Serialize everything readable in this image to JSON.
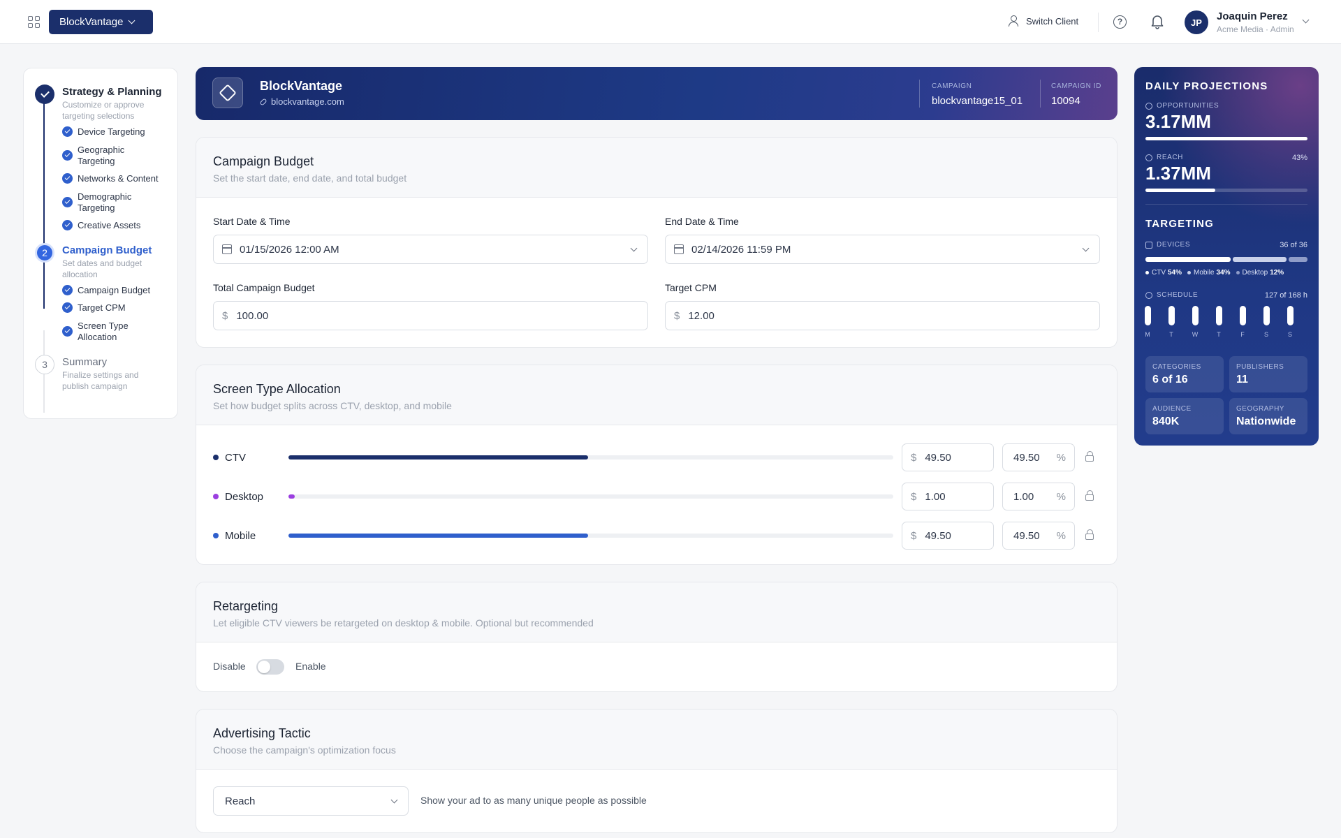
{
  "topbar": {
    "client": "BlockVantage",
    "switch_client": "Switch Client",
    "user_initials": "JP",
    "user_name": "Joaquin Perez",
    "user_role": "Acme Media · Admin"
  },
  "stepper": {
    "step1": {
      "title": "Strategy & Planning",
      "desc": "Customize or approve targeting selections",
      "items": [
        "Device Targeting",
        "Geographic Targeting",
        "Networks & Content",
        "Demographic Targeting",
        "Creative Assets"
      ]
    },
    "step2": {
      "number": "2",
      "title": "Campaign Budget",
      "desc": "Set dates and budget allocation",
      "items": [
        "Campaign Budget",
        "Target CPM",
        "Screen Type Allocation"
      ]
    },
    "step3": {
      "number": "3",
      "title": "Summary",
      "desc": "Finalize settings and publish campaign"
    }
  },
  "campaign": {
    "name": "BlockVantage",
    "url": "blockvantage.com",
    "campaign_label": "CAMPAIGN",
    "campaign_value": "blockvantage15_01",
    "id_label": "CAMPAIGN ID",
    "id_value": "10094"
  },
  "budget": {
    "title": "Campaign Budget",
    "subtitle": "Set the start date, end date, and total budget",
    "start_label": "Start Date & Time",
    "start_value": "01/15/2026 12:00 AM",
    "end_label": "End Date & Time",
    "end_value": "02/14/2026 11:59 PM",
    "total_label": "Total Campaign Budget",
    "total_value": "100.00",
    "cpm_label": "Target CPM",
    "cpm_value": "12.00",
    "currency": "$"
  },
  "allocation": {
    "title": "Screen Type Allocation",
    "subtitle": "Set how budget splits across CTV, desktop, and mobile",
    "percent_symbol": "%",
    "rows": [
      {
        "label": "CTV",
        "amount": "49.50",
        "percent": "49.50",
        "share": 0.495,
        "color": "#1b2f6b"
      },
      {
        "label": "Desktop",
        "amount": "1.00",
        "percent": "1.00",
        "share": 0.01,
        "color": "#9b3fe0"
      },
      {
        "label": "Mobile",
        "amount": "49.50",
        "percent": "49.50",
        "share": 0.495,
        "color": "#2f5fcc"
      }
    ]
  },
  "retargeting": {
    "title": "Retargeting",
    "subtitle": "Let eligible CTV viewers be retargeted on desktop & mobile. Optional but recommended",
    "disable_label": "Disable",
    "enable_label": "Enable",
    "enabled": false
  },
  "tactic": {
    "title": "Advertising Tactic",
    "subtitle": "Choose the campaign's optimization focus",
    "selected": "Reach",
    "description": "Show your ad to as many unique people as possible"
  },
  "projections": {
    "title": "DAILY PROJECTIONS",
    "opportunities_label": "OPPORTUNITIES",
    "opportunities_value": "3.17MM",
    "opportunities_fill": 1.0,
    "reach_label": "REACH",
    "reach_value": "1.37MM",
    "reach_percent": "43%",
    "reach_fill": 0.43,
    "targeting_title": "TARGETING",
    "devices_label": "DEVICES",
    "devices_count": "36 of 36",
    "devices": [
      {
        "name": "CTV",
        "pct": "54%",
        "share": 0.54,
        "color": "#ffffff"
      },
      {
        "name": "Mobile",
        "pct": "34%",
        "share": 0.34,
        "color": "#c9d1ea"
      },
      {
        "name": "Desktop",
        "pct": "12%",
        "share": 0.12,
        "color": "#8f9cc8"
      }
    ],
    "schedule_label": "SCHEDULE",
    "schedule_hours": "127 of 168 h",
    "days": [
      "M",
      "T",
      "W",
      "T",
      "F",
      "S",
      "S"
    ],
    "stats": {
      "categories_label": "CATEGORIES",
      "categories_value": "6 of 16",
      "publishers_label": "PUBLISHERS",
      "publishers_value": "11",
      "audience_label": "AUDIENCE",
      "audience_value": "840K",
      "geography_label": "GEOGRAPHY",
      "geography_value": "Nationwide"
    }
  }
}
